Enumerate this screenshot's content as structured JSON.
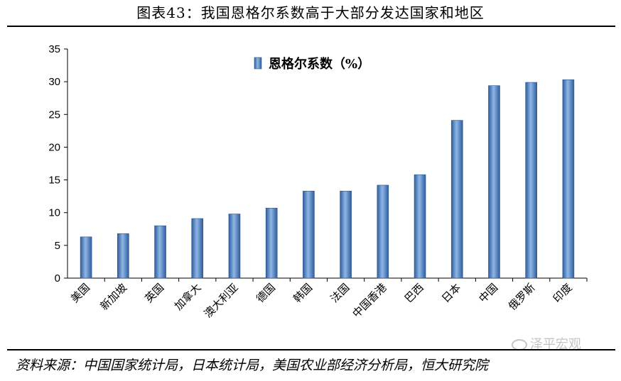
{
  "header": {
    "title": "图表43：我国恩格尔系数高于大部分发达国家和地区"
  },
  "footer": {
    "source": "资料来源：中国国家统计局，日本统计局，美国农业部经济分析局，恒大研究院",
    "watermark": "泽平宏观"
  },
  "chart_data": {
    "type": "bar",
    "title": "",
    "xlabel": "",
    "ylabel": "",
    "ylim": [
      0,
      35
    ],
    "yticks": [
      0,
      5,
      10,
      15,
      20,
      25,
      30,
      35
    ],
    "legend_position": "top-left",
    "grid": false,
    "bar_color": "#5b8dc9",
    "categories": [
      "美国",
      "新加坡",
      "英国",
      "加拿大",
      "澳大利亚",
      "德国",
      "韩国",
      "法国",
      "中国香港",
      "巴西",
      "日本",
      "中国",
      "俄罗斯",
      "印度"
    ],
    "series": [
      {
        "name": "恩格尔系数（%）",
        "values": [
          6.3,
          6.8,
          8.0,
          9.1,
          9.8,
          10.7,
          13.3,
          13.3,
          14.2,
          15.8,
          24.1,
          29.4,
          29.9,
          30.3
        ]
      }
    ]
  }
}
